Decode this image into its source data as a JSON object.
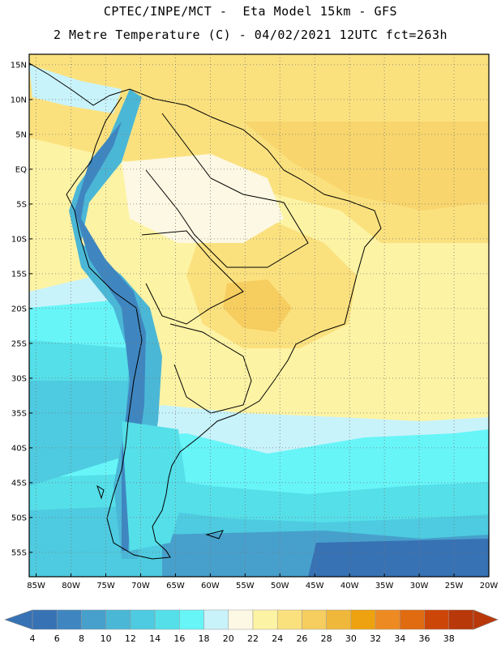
{
  "header": {
    "line1": "CPTEC/INPE/MCT -  Eta Model 15km - GFS",
    "line2": "2 Metre Temperature (C) - 04/02/2021 12UTC fct=263h"
  },
  "map": {
    "lon_range": [
      -86,
      -20
    ],
    "lat_range": [
      -58.5,
      16.5
    ],
    "lat_ticks": [
      {
        "value": 15,
        "label": "15N"
      },
      {
        "value": 10,
        "label": "10N"
      },
      {
        "value": 5,
        "label": "5N"
      },
      {
        "value": 0,
        "label": "EQ"
      },
      {
        "value": -5,
        "label": "5S"
      },
      {
        "value": -10,
        "label": "10S"
      },
      {
        "value": -15,
        "label": "15S"
      },
      {
        "value": -20,
        "label": "20S"
      },
      {
        "value": -25,
        "label": "25S"
      },
      {
        "value": -30,
        "label": "30S"
      },
      {
        "value": -35,
        "label": "35S"
      },
      {
        "value": -40,
        "label": "40S"
      },
      {
        "value": -45,
        "label": "45S"
      },
      {
        "value": -50,
        "label": "50S"
      },
      {
        "value": -55,
        "label": "55S"
      }
    ],
    "lon_ticks": [
      {
        "value": -85,
        "label": "85W"
      },
      {
        "value": -80,
        "label": "80W"
      },
      {
        "value": -75,
        "label": "75W"
      },
      {
        "value": -70,
        "label": "70W"
      },
      {
        "value": -65,
        "label": "65W"
      },
      {
        "value": -60,
        "label": "60W"
      },
      {
        "value": -55,
        "label": "55W"
      },
      {
        "value": -50,
        "label": "50W"
      },
      {
        "value": -45,
        "label": "45W"
      },
      {
        "value": -40,
        "label": "40W"
      },
      {
        "value": -35,
        "label": "35W"
      },
      {
        "value": -30,
        "label": "30W"
      },
      {
        "value": -25,
        "label": "25W"
      },
      {
        "value": -20,
        "label": "20W"
      }
    ]
  },
  "colorbar": {
    "labels": [
      "4",
      "6",
      "8",
      "10",
      "12",
      "14",
      "16",
      "18",
      "20",
      "22",
      "24",
      "26",
      "28",
      "30",
      "32",
      "34",
      "36",
      "38"
    ],
    "colors": [
      "#3772b4",
      "#3f86c0",
      "#47a0cc",
      "#4bb7d6",
      "#4ecbe0",
      "#55dfe9",
      "#67f5f8",
      "#c9f3fa",
      "#fdf8e3",
      "#fdf3a4",
      "#fbe17e",
      "#f6cd5f",
      "#f0b83a",
      "#efa20f",
      "#ed8a22",
      "#e06b10",
      "#cc4608",
      "#b8380a"
    ]
  }
}
